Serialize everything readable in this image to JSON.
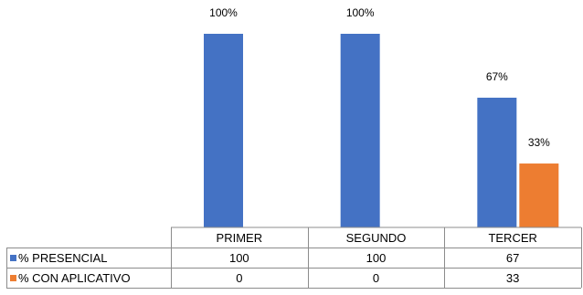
{
  "chart_data": {
    "type": "bar",
    "categories": [
      "PRIMER",
      "SEGUNDO",
      "TERCER"
    ],
    "series": [
      {
        "name": "% PRESENCIAL",
        "color": "#4472C4",
        "values": [
          100,
          100,
          67
        ],
        "data_labels": [
          "100%",
          "100%",
          "67%"
        ]
      },
      {
        "name": "% CON APLICATIVO",
        "color": "#ED7D31",
        "values": [
          0,
          0,
          33
        ],
        "data_labels": [
          "",
          "",
          "33%"
        ]
      }
    ],
    "table_rows": [
      {
        "label": "% PRESENCIAL",
        "cells": [
          "100",
          "100",
          "67"
        ]
      },
      {
        "label": "% CON APLICATIVO",
        "cells": [
          "0",
          "0",
          "33"
        ]
      }
    ],
    "ylim": [
      0,
      100
    ],
    "grid": false,
    "legend": "data-table"
  }
}
